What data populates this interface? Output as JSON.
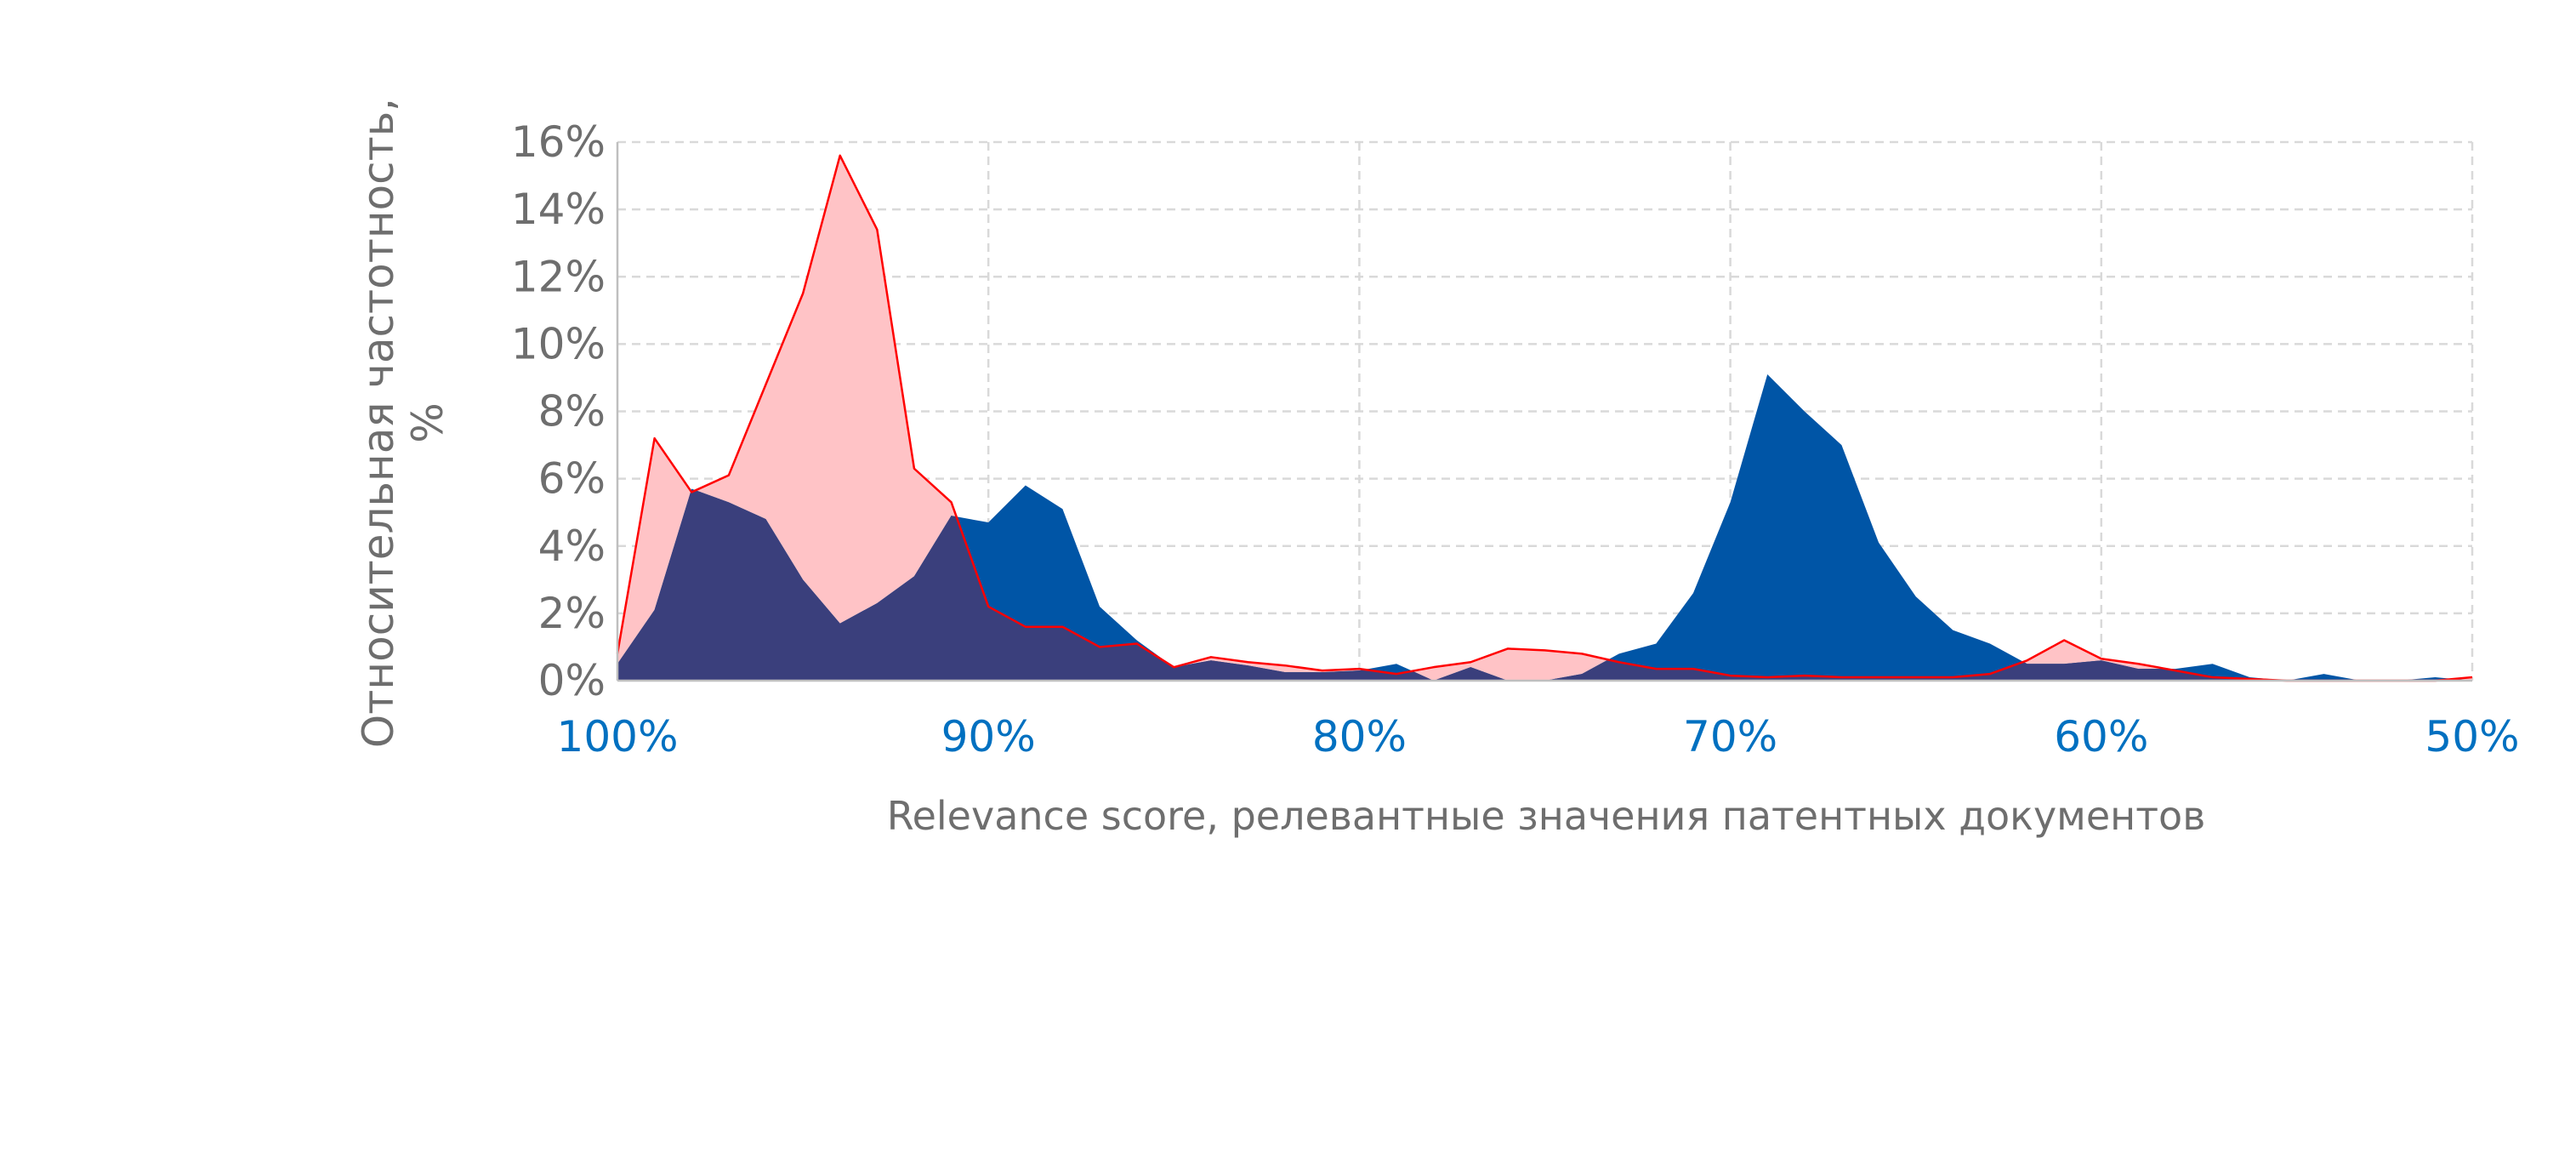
{
  "chart_data": {
    "type": "area",
    "title": "",
    "xlabel": "Relevance score, релевантные значения патентных документов",
    "ylabel": "Относительная частотность, %",
    "x_reversed": true,
    "xlim": [
      100,
      50
    ],
    "ylim": [
      0,
      16
    ],
    "x_ticks": [
      100,
      90,
      80,
      70,
      60,
      50
    ],
    "x_tick_labels": [
      "100%",
      "90%",
      "80%",
      "70%",
      "60%",
      "50%"
    ],
    "y_ticks": [
      0,
      2,
      4,
      6,
      8,
      10,
      12,
      14,
      16
    ],
    "y_tick_labels": [
      "0%",
      "2%",
      "4%",
      "6%",
      "8%",
      "10%",
      "12%",
      "14%",
      "16%"
    ],
    "grid": true,
    "legend": "none",
    "x": [
      100,
      99,
      98,
      97,
      96,
      95,
      94,
      93,
      92,
      91,
      90,
      89,
      88,
      87,
      86,
      85,
      84,
      83,
      82,
      81,
      80,
      79,
      78,
      77,
      76,
      75,
      74,
      73,
      72,
      71,
      70,
      69,
      68,
      67,
      66,
      65,
      64,
      63,
      62,
      61,
      60,
      59,
      58,
      57,
      56,
      55,
      54,
      53,
      52,
      51,
      50
    ],
    "series": [
      {
        "name": "",
        "color": "#0055a6",
        "values": [
          0.5,
          2.1,
          5.7,
          5.3,
          4.8,
          3.0,
          1.7,
          2.3,
          3.1,
          4.9,
          4.7,
          5.8,
          5.1,
          2.2,
          1.2,
          0.4,
          0.6,
          0.45,
          0.25,
          0.25,
          0.3,
          0.5,
          0.0,
          0.4,
          0.0,
          0.0,
          0.2,
          0.8,
          1.1,
          2.6,
          5.3,
          9.1,
          8.0,
          7.0,
          4.1,
          2.5,
          1.5,
          1.1,
          0.5,
          0.5,
          0.6,
          0.35,
          0.35,
          0.5,
          0.1,
          0.0,
          0.2,
          0.0,
          0.0,
          0.1,
          0.0
        ]
      },
      {
        "name": "",
        "color": "#ff0000",
        "fill": "#ffc3c6",
        "values": [
          0.8,
          7.2,
          5.6,
          6.1,
          8.8,
          11.5,
          15.6,
          13.4,
          6.3,
          5.3,
          2.2,
          1.6,
          1.6,
          1.0,
          1.1,
          0.4,
          0.7,
          0.55,
          0.45,
          0.3,
          0.35,
          0.2,
          0.4,
          0.55,
          0.95,
          0.9,
          0.8,
          0.55,
          0.35,
          0.35,
          0.15,
          0.1,
          0.15,
          0.1,
          0.1,
          0.1,
          0.1,
          0.2,
          0.6,
          1.2,
          0.65,
          0.5,
          0.3,
          0.1,
          0.05,
          0.0,
          0.0,
          0.0,
          0.0,
          0.0,
          0.1
        ]
      }
    ],
    "overlap_color": "#3a3f7c"
  }
}
